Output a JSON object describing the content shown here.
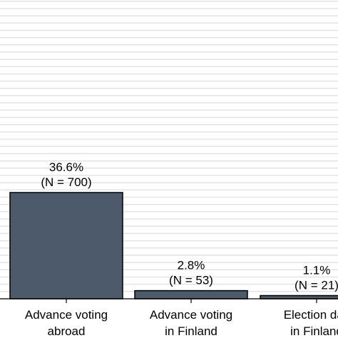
{
  "colors": {
    "bar": "#4d5a6b",
    "grid": "#e3e3e3",
    "background": "#ffffff"
  },
  "chart_data": {
    "type": "bar",
    "categories": [
      [
        "Advance voting",
        "abroad"
      ],
      [
        "Advance voting",
        "in Finland"
      ],
      [
        "Election day",
        "in Finland"
      ]
    ],
    "values": [
      36.6,
      2.8,
      1.1
    ],
    "counts": [
      700,
      53,
      21
    ],
    "value_labels": [
      "36.6%",
      "2.8%",
      "1.1%"
    ],
    "count_labels": [
      "(N = 700)",
      "(N = 53)",
      "(N = 21)"
    ],
    "ylabel": "",
    "title": "",
    "grid": true,
    "legend": "none"
  }
}
